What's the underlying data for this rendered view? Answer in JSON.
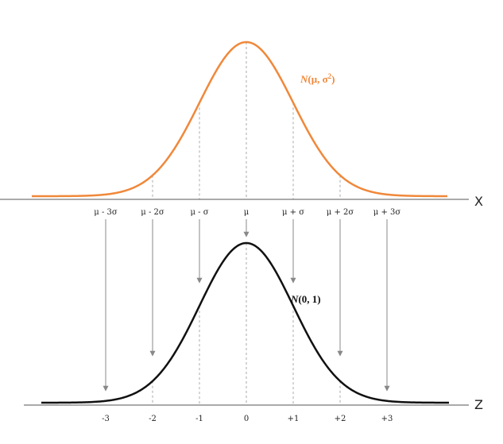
{
  "colors": {
    "normal_curve": "#f0883a",
    "standard_curve": "#111111",
    "axis": "#555555",
    "guide_line": "#aaaaaa",
    "arrow": "#888888"
  },
  "top": {
    "curve_label": {
      "letter": "N",
      "params": "(μ, σ",
      "exponent": "2",
      "close": ")"
    },
    "axis_name": "X",
    "ticks": [
      "μ - 3σ",
      "μ - 2σ",
      "μ - σ",
      "μ",
      "μ + σ",
      "μ + 2σ",
      "μ + 3σ"
    ]
  },
  "bottom": {
    "curve_label": {
      "letter": "N",
      "params": "(0, 1)"
    },
    "axis_name": "Z",
    "ticks": [
      "-3",
      "-2",
      "-1",
      "0",
      "+1",
      "+2",
      "+3"
    ]
  }
}
